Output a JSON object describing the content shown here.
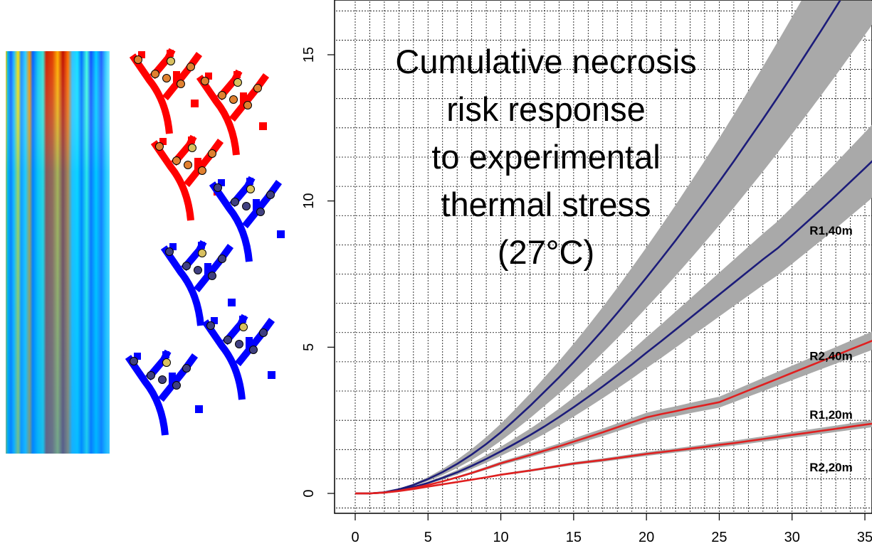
{
  "chart_data": {
    "type": "line",
    "title_lines": [
      "Cumulative necrosis",
      "risk response",
      "to experimental",
      "thermal stress",
      "(27°C)"
    ],
    "xlabel": "",
    "ylabel": "",
    "xlim": [
      0,
      36
    ],
    "ylim": [
      0,
      16
    ],
    "x_ticks": [
      0,
      5,
      10,
      15,
      20,
      25,
      30,
      35
    ],
    "y_ticks": [
      0,
      5,
      10,
      15
    ],
    "grid": true,
    "x": [
      0,
      1,
      2,
      3,
      4,
      5,
      6,
      7,
      8,
      9,
      10,
      11,
      12,
      13,
      14,
      15,
      16,
      17,
      18,
      19,
      20,
      21,
      22,
      23,
      24,
      25,
      26,
      27,
      28,
      29,
      30,
      31,
      32,
      33,
      34,
      35,
      36
    ],
    "series": [
      {
        "name": "R1,40m",
        "color": "#1c1c7a",
        "values": [
          0,
          0.0,
          0.04,
          0.14,
          0.29,
          0.49,
          0.73,
          1.01,
          1.33,
          1.69,
          2.09,
          2.53,
          2.99,
          3.48,
          3.97,
          4.49,
          5.03,
          5.59,
          6.17,
          6.77,
          7.38,
          8.01,
          8.65,
          9.31,
          9.98,
          10.66,
          11.36,
          12.08,
          12.8,
          13.54,
          14.29,
          15.06,
          15.83,
          16.62,
          17.42,
          18.23,
          19.05
        ]
      },
      {
        "name": "R2,40m",
        "color": "#1c1c7a",
        "values": [
          0,
          0.0,
          0.03,
          0.11,
          0.22,
          0.36,
          0.53,
          0.72,
          0.94,
          1.18,
          1.44,
          1.71,
          1.99,
          2.29,
          2.61,
          2.95,
          3.3,
          3.66,
          4.03,
          4.41,
          4.81,
          5.2,
          5.6,
          6.0,
          6.4,
          6.8,
          7.2,
          7.6,
          8.0,
          8.38,
          8.82,
          9.27,
          9.72,
          10.18,
          10.65,
          11.12,
          11.6
        ]
      },
      {
        "name": "R1,20m",
        "color": "#e02020",
        "values": [
          0,
          0.0,
          0.03,
          0.09,
          0.18,
          0.29,
          0.41,
          0.55,
          0.7,
          0.86,
          1.03,
          1.17,
          1.31,
          1.46,
          1.61,
          1.77,
          1.93,
          2.09,
          2.26,
          2.43,
          2.6,
          2.71,
          2.81,
          2.92,
          3.02,
          3.12,
          3.32,
          3.52,
          3.72,
          3.92,
          4.12,
          4.32,
          4.52,
          4.72,
          4.92,
          5.12,
          5.32
        ]
      },
      {
        "name": "R2,20m",
        "color": "#e02020",
        "values": [
          0,
          0.0,
          0.03,
          0.08,
          0.15,
          0.23,
          0.31,
          0.39,
          0.47,
          0.55,
          0.64,
          0.71,
          0.78,
          0.86,
          0.94,
          1.02,
          1.08,
          1.14,
          1.21,
          1.28,
          1.35,
          1.41,
          1.47,
          1.53,
          1.59,
          1.66,
          1.72,
          1.79,
          1.86,
          1.93,
          2.0,
          2.07,
          2.14,
          2.21,
          2.28,
          2.35,
          2.42
        ]
      }
    ],
    "band_color": "#a9a9a9",
    "band_widths": {
      "R1,40m": 0.14,
      "R2,40m": 0.11,
      "R1,20m": 0.06,
      "R2,20m": 0.05
    },
    "curve_labels": [
      {
        "text": "R1,40m",
        "x": 31.2,
        "y": 9.0
      },
      {
        "text": "R2,40m",
        "x": 31.2,
        "y": 4.7
      },
      {
        "text": "R1,20m",
        "x": 31.2,
        "y": 2.7
      },
      {
        "text": "R2,20m",
        "x": 31.2,
        "y": 0.9
      }
    ]
  },
  "illustration": {
    "heatmap_strip": "temperature-heatmap",
    "coral_groups": [
      {
        "color": "#ff0000"
      },
      {
        "color": "#0000ff"
      }
    ]
  }
}
